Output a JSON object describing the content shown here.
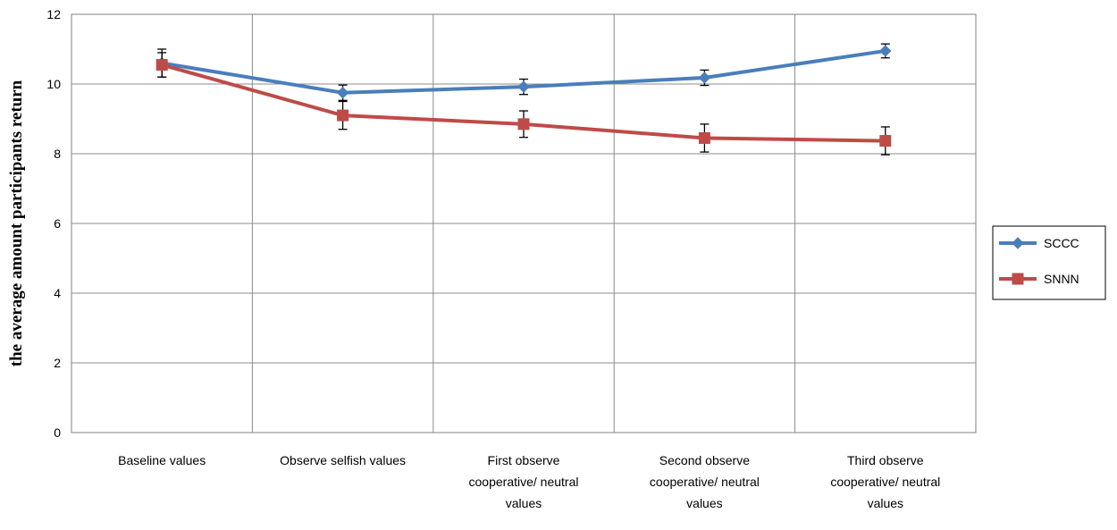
{
  "chart_data": {
    "type": "line",
    "title": "",
    "xlabel": "",
    "ylabel": "the average amount participants  return",
    "ylim": [
      0,
      12
    ],
    "yticks": [
      0,
      2,
      4,
      6,
      8,
      10,
      12
    ],
    "grid": true,
    "legend_position": "right",
    "categories": [
      [
        "Baseline values"
      ],
      [
        "Observe selfish values"
      ],
      [
        "First observe",
        "cooperative/ neutral",
        "values"
      ],
      [
        "Second observe",
        "cooperative/ neutral",
        "values"
      ],
      [
        "Third observe",
        "cooperative/ neutral",
        "values"
      ]
    ],
    "series": [
      {
        "name": "SCCC",
        "color": "#4a7ebb",
        "marker": "diamond",
        "values": [
          10.6,
          9.75,
          9.92,
          10.18,
          10.95
        ],
        "error": [
          0.4,
          0.22,
          0.22,
          0.22,
          0.2
        ]
      },
      {
        "name": "SNNN",
        "color": "#be4b48",
        "marker": "square",
        "values": [
          10.55,
          9.1,
          8.85,
          8.45,
          8.37
        ],
        "error": [
          0.35,
          0.4,
          0.38,
          0.4,
          0.4
        ]
      }
    ]
  }
}
